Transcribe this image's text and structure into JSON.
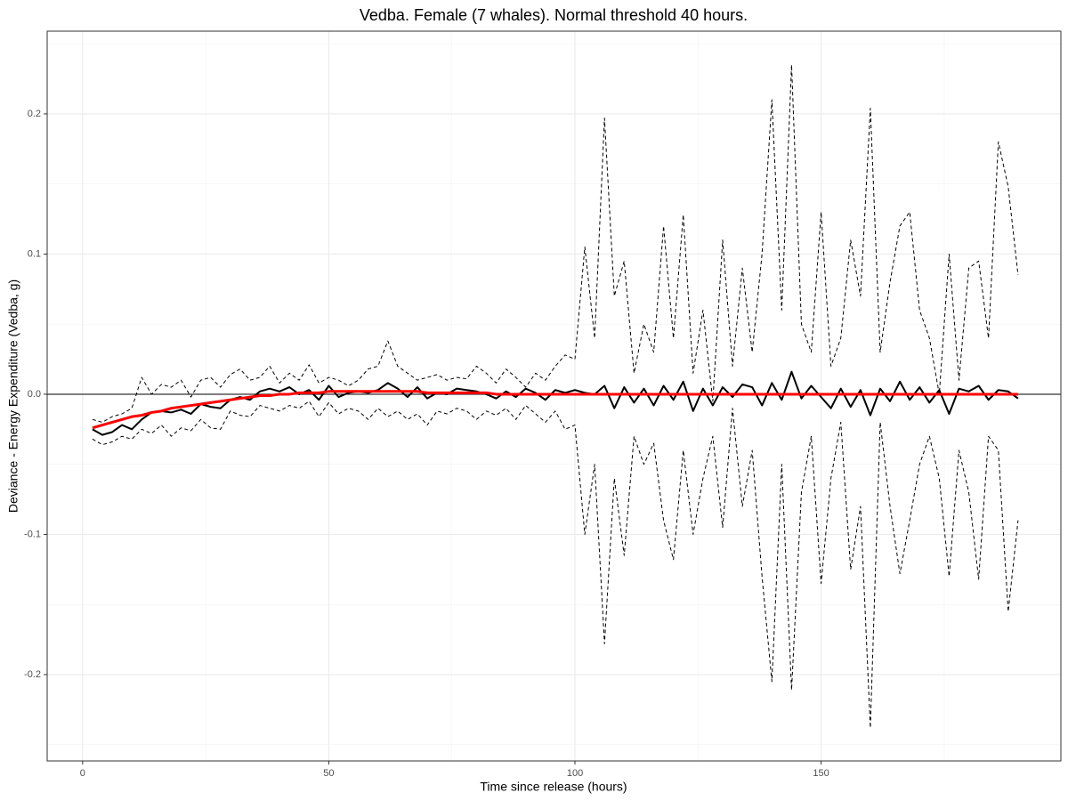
{
  "chart_data": {
    "type": "line",
    "title": "Vedba. Female (7 whales). Normal threshold 40 hours.",
    "x_label": "Time since release (hours)",
    "y_label": "Deviance - Energy Expenditure (Vedba, g)",
    "xlim": [
      -7.2,
      198.7
    ],
    "ylim": [
      -0.2616,
      0.259
    ],
    "xticks": [
      0,
      50,
      100,
      150
    ],
    "yticks": [
      -0.2,
      -0.1,
      {
        "value": 0,
        "label": "0.0"
      },
      0.1,
      0.2
    ],
    "x_minor_grid": [
      25,
      75,
      125,
      175
    ],
    "y_minor_grid": [
      -0.25,
      -0.15,
      -0.05,
      0.05,
      0.15,
      0.25
    ],
    "grid": true,
    "hline": 0,
    "x": [
      2,
      4,
      6,
      8,
      10,
      12,
      14,
      16,
      18,
      20,
      22,
      24,
      26,
      28,
      30,
      32,
      34,
      36,
      38,
      40,
      42,
      44,
      46,
      48,
      50,
      52,
      54,
      56,
      58,
      60,
      62,
      64,
      66,
      68,
      70,
      72,
      74,
      76,
      78,
      80,
      82,
      84,
      86,
      88,
      90,
      92,
      94,
      96,
      98,
      100,
      102,
      104,
      106,
      108,
      110,
      112,
      114,
      116,
      118,
      120,
      122,
      124,
      126,
      128,
      130,
      132,
      134,
      136,
      138,
      140,
      142,
      144,
      146,
      148,
      150,
      152,
      154,
      156,
      158,
      160,
      162,
      164,
      166,
      168,
      170,
      172,
      174,
      176,
      178,
      180,
      182,
      184,
      186,
      188,
      190
    ],
    "series": [
      {
        "color": "#000000",
        "dash": true,
        "width": 1,
        "values": [
          -0.018,
          -0.02,
          -0.016,
          -0.014,
          -0.01,
          0.012,
          0.0,
          0.007,
          0.005,
          0.01,
          -0.002,
          0.01,
          0.012,
          0.005,
          0.014,
          0.018,
          0.01,
          0.012,
          0.02,
          0.008,
          0.015,
          0.01,
          0.021,
          0.008,
          0.012,
          0.01,
          0.006,
          0.01,
          0.018,
          0.02,
          0.038,
          0.02,
          0.015,
          0.01,
          0.012,
          0.014,
          0.01,
          0.012,
          0.011,
          0.02,
          0.015,
          0.008,
          0.018,
          0.012,
          0.005,
          0.015,
          0.01,
          0.02,
          0.028,
          0.025,
          0.105,
          0.04,
          0.197,
          0.07,
          0.095,
          0.015,
          0.05,
          0.03,
          0.12,
          0.04,
          0.128,
          0.015,
          0.06,
          -0.005,
          0.11,
          0.02,
          0.09,
          0.03,
          0.1,
          0.21,
          0.06,
          0.235,
          0.05,
          0.03,
          0.13,
          0.02,
          0.04,
          0.11,
          0.07,
          0.204,
          0.03,
          0.08,
          0.12,
          0.13,
          0.06,
          0.04,
          0.0,
          0.1,
          0.01,
          0.09,
          0.095,
          0.04,
          0.18,
          0.148,
          0.085
        ]
      },
      {
        "color": "#000000",
        "dash": true,
        "width": 1,
        "values": [
          -0.032,
          -0.036,
          -0.034,
          -0.03,
          -0.032,
          -0.025,
          -0.028,
          -0.022,
          -0.03,
          -0.024,
          -0.026,
          -0.018,
          -0.024,
          -0.025,
          -0.012,
          -0.015,
          -0.016,
          -0.008,
          -0.01,
          -0.012,
          -0.008,
          -0.01,
          -0.005,
          -0.016,
          -0.006,
          -0.014,
          -0.01,
          -0.012,
          -0.018,
          -0.01,
          -0.016,
          -0.012,
          -0.018,
          -0.014,
          -0.022,
          -0.012,
          -0.014,
          -0.01,
          -0.012,
          -0.018,
          -0.012,
          -0.015,
          -0.01,
          -0.018,
          -0.008,
          -0.014,
          -0.02,
          -0.012,
          -0.025,
          -0.022,
          -0.1,
          -0.05,
          -0.178,
          -0.06,
          -0.115,
          -0.03,
          -0.05,
          -0.035,
          -0.09,
          -0.118,
          -0.04,
          -0.1,
          -0.06,
          -0.03,
          -0.095,
          -0.01,
          -0.08,
          -0.04,
          -0.13,
          -0.205,
          -0.05,
          -0.211,
          -0.07,
          -0.03,
          -0.135,
          -0.06,
          -0.02,
          -0.125,
          -0.08,
          -0.238,
          -0.02,
          -0.08,
          -0.128,
          -0.09,
          -0.05,
          -0.03,
          -0.06,
          -0.13,
          -0.04,
          -0.07,
          -0.132,
          -0.03,
          -0.04,
          -0.155,
          -0.09
        ]
      },
      {
        "color": "#000000",
        "dash": false,
        "width": 2,
        "values": [
          -0.025,
          -0.029,
          -0.027,
          -0.022,
          -0.025,
          -0.018,
          -0.013,
          -0.012,
          -0.013,
          -0.011,
          -0.014,
          -0.007,
          -0.009,
          -0.01,
          -0.004,
          -0.002,
          -0.004,
          0.002,
          0.004,
          0.002,
          0.005,
          0.0,
          0.003,
          -0.004,
          0.006,
          -0.002,
          0.001,
          0.002,
          0.001,
          0.003,
          0.008,
          0.004,
          -0.002,
          0.005,
          -0.003,
          0.001,
          0.0,
          0.004,
          0.003,
          0.002,
          0.0,
          -0.003,
          0.002,
          -0.002,
          0.004,
          0.001,
          -0.004,
          0.003,
          0.001,
          0.003,
          0.001,
          0.0,
          0.006,
          -0.01,
          0.005,
          -0.006,
          0.004,
          -0.008,
          0.006,
          -0.004,
          0.009,
          -0.012,
          0.004,
          -0.008,
          0.005,
          -0.002,
          0.007,
          0.005,
          -0.008,
          0.008,
          -0.004,
          0.016,
          -0.003,
          0.006,
          -0.002,
          -0.01,
          0.004,
          -0.009,
          0.003,
          -0.015,
          0.004,
          -0.005,
          0.009,
          -0.004,
          0.005,
          -0.006,
          0.003,
          -0.014,
          0.004,
          0.002,
          0.006,
          -0.004,
          0.003,
          0.002,
          -0.003
        ]
      },
      {
        "color": "#ff0000",
        "dash": false,
        "width": 3,
        "values": [
          -0.024,
          -0.022,
          -0.02,
          -0.018,
          -0.016,
          -0.015,
          -0.013,
          -0.012,
          -0.01,
          -0.009,
          -0.008,
          -0.007,
          -0.006,
          -0.005,
          -0.004,
          -0.003,
          -0.002,
          -0.001,
          -0.001,
          0.0,
          0.0,
          0.001,
          0.001,
          0.001,
          0.002,
          0.002,
          0.002,
          0.002,
          0.002,
          0.002,
          0.002,
          0.002,
          0.002,
          0.002,
          0.001,
          0.001,
          0.001,
          0.001,
          0.001,
          0.001,
          0.001,
          0.0,
          0.0,
          0.0,
          0.0,
          0.0,
          0.0,
          0.0,
          0.0,
          0.0,
          0.0,
          0.0,
          0.0,
          0.0,
          0.0,
          0.0,
          0.0,
          0.0,
          0.0,
          0.0,
          0.0,
          0.0,
          0.0,
          0.0,
          0.0,
          0.0,
          0.0,
          0.0,
          0.0,
          0.0,
          0.0,
          0.0,
          0.0,
          0.0,
          0.0,
          0.0,
          0.0,
          0.0,
          0.0,
          0.0,
          0.0,
          0.0,
          0.0,
          0.0,
          0.0,
          0.0,
          0.0,
          0.0,
          0.0,
          0.0,
          0.0,
          0.0,
          0.0,
          0.0,
          0.0
        ]
      }
    ]
  }
}
